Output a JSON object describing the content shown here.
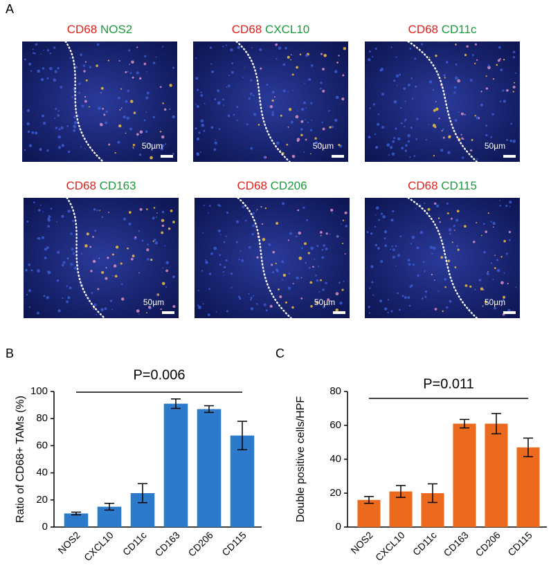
{
  "panel_labels": [
    "A",
    "B",
    "C"
  ],
  "images": [
    {
      "marker": "CD68",
      "target": "NOS2",
      "scale": "50µm"
    },
    {
      "marker": "CD68",
      "target": "CXCL10",
      "scale": "50µm"
    },
    {
      "marker": "CD68",
      "target": "CD11c",
      "scale": "50µm"
    },
    {
      "marker": "CD68",
      "target": "CD163",
      "scale": "50µm"
    },
    {
      "marker": "CD68",
      "target": "CD206",
      "scale": "50µm"
    },
    {
      "marker": "CD68",
      "target": "CD115",
      "scale": "50µm"
    }
  ],
  "chart_data": [
    {
      "type": "bar",
      "ylabel": "Ratio of CD68+ TAMs (%)",
      "annotation": "P=0.006",
      "categories": [
        "NOS2",
        "CXCL10",
        "CD11c",
        "CD163",
        "CD206",
        "CD115"
      ],
      "values": [
        10,
        15,
        25,
        91,
        87,
        67.5
      ],
      "errors": [
        1,
        2.5,
        7,
        3.5,
        2.5,
        10.5
      ],
      "color": "#2b7bca",
      "ylim": [
        0,
        100
      ],
      "yticks": [
        0,
        20,
        40,
        60,
        80,
        100
      ]
    },
    {
      "type": "bar",
      "ylabel": "Double positive cells/HPF",
      "annotation": "P=0.011",
      "categories": [
        "NOS2",
        "CXCL10",
        "CD11c",
        "CD163",
        "CD206",
        "CD115"
      ],
      "values": [
        16,
        21,
        20,
        61,
        61,
        47
      ],
      "errors": [
        2,
        3.5,
        5.5,
        2.5,
        6,
        5.5
      ],
      "color": "#ec6a1e",
      "ylim": [
        0,
        80
      ],
      "yticks": [
        0,
        20,
        40,
        60,
        80
      ]
    }
  ]
}
